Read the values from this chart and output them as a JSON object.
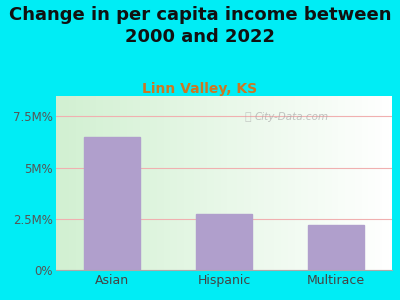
{
  "title": "Change in per capita income between\n2000 and 2022",
  "subtitle": "Linn Valley, KS",
  "categories": [
    "Asian",
    "Hispanic",
    "Multirace"
  ],
  "values": [
    6.5,
    2.75,
    2.2
  ],
  "ylim": [
    0,
    8.5
  ],
  "yticks": [
    0,
    2.5,
    5.0,
    7.5
  ],
  "ytick_labels": [
    "0%",
    "2.5M%",
    "5M%",
    "7.5M%"
  ],
  "bar_color": "#b09fcc",
  "background_outer": "#00edf5",
  "background_plot_left": "#d4ecd4",
  "background_plot_right": "#f0f8f0",
  "title_fontsize": 13,
  "subtitle_fontsize": 10,
  "subtitle_color": "#cc7722",
  "title_color": "#111111",
  "watermark": "City-Data.com",
  "gridline_color": "#f0b0b0",
  "tick_label_color": "#555555",
  "xtick_label_color": "#444444"
}
